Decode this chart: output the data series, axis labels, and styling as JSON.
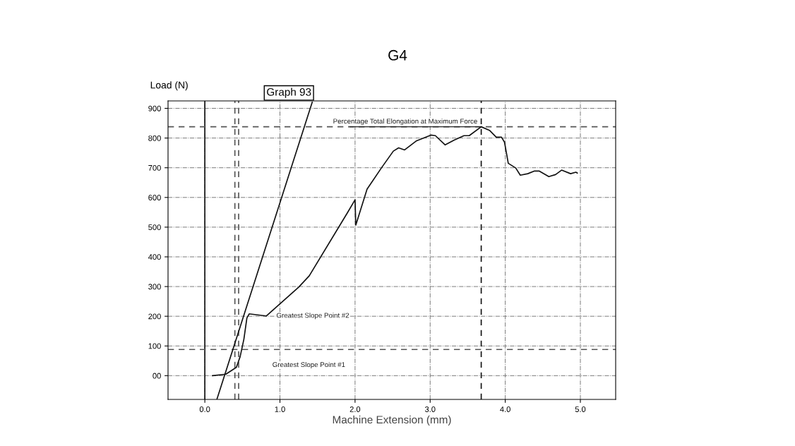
{
  "chart_data": {
    "type": "line",
    "title": "G4",
    "subtitle": "Graph 93",
    "xlabel": "Machine Extension (mm)",
    "ylabel": "Load (N)",
    "xlim": [
      -0.49,
      5.47
    ],
    "ylim": [
      -80,
      925
    ],
    "xticks": [
      {
        "value": 0,
        "label": "0.0"
      },
      {
        "value": 1,
        "label": "1.0"
      },
      {
        "value": 2,
        "label": "2.0"
      },
      {
        "value": 3,
        "label": "3.0"
      },
      {
        "value": 4,
        "label": "4.0"
      },
      {
        "value": 5,
        "label": "5.0"
      }
    ],
    "yticks": [
      {
        "value": 0,
        "label": "00"
      },
      100,
      200,
      300,
      400,
      500,
      600,
      700,
      800,
      900
    ],
    "grid": true,
    "legend": false,
    "marker": "none",
    "line_style": "solid",
    "series": [
      {
        "color": "#111111",
        "x": [
          0.1,
          0.28,
          0.42,
          0.47,
          0.52,
          0.56,
          0.59,
          0.82,
          1.25,
          1.39,
          1.9,
          2.0,
          2.01,
          2.16,
          2.35,
          2.51,
          2.58,
          2.66,
          2.82,
          3.01,
          3.07,
          3.2,
          3.32,
          3.45,
          3.52,
          3.68,
          3.79,
          3.88,
          3.95,
          3.99,
          4.04,
          4.14,
          4.2,
          4.3,
          4.39,
          4.45,
          4.58,
          4.67,
          4.75,
          4.87,
          4.94,
          4.96
        ],
        "values": [
          0,
          5,
          28,
          64,
          123,
          194,
          208,
          201,
          298,
          336,
          549,
          592,
          507,
          628,
          699,
          756,
          767,
          760,
          791,
          810,
          808,
          777,
          793,
          808,
          808,
          838,
          826,
          803,
          803,
          786,
          715,
          699,
          675,
          680,
          689,
          689,
          670,
          677,
          692,
          680,
          685,
          682
        ]
      },
      {
        "color": "#111111",
        "x": [
          0.16,
          1.43
        ],
        "values": [
          -80,
          921
        ]
      }
    ],
    "ref_lines": [
      {
        "axis": "x",
        "value": 0,
        "line_style": "solid",
        "color": "#111111"
      },
      {
        "axis": "x",
        "value": 3.68,
        "line_style": "dashed",
        "color": "#111111"
      },
      {
        "axis": "y",
        "value": 838,
        "line_style": "dashed",
        "color": "#555555"
      },
      {
        "axis": "y",
        "value": 88,
        "line_style": "dashed",
        "color": "#555555"
      },
      {
        "axis": "x",
        "value": 0.4,
        "line_style": "dashed",
        "color": "#555555"
      },
      {
        "axis": "x",
        "value": 0.45,
        "line_style": "dashed",
        "color": "#555555"
      }
    ],
    "annotations": [
      {
        "text": "Percentage Total Elongation at Maximum Force",
        "x": 3.68,
        "y": 838
      },
      "Greatest Slope Point #2",
      "Greatest Slope Point #1"
    ]
  }
}
